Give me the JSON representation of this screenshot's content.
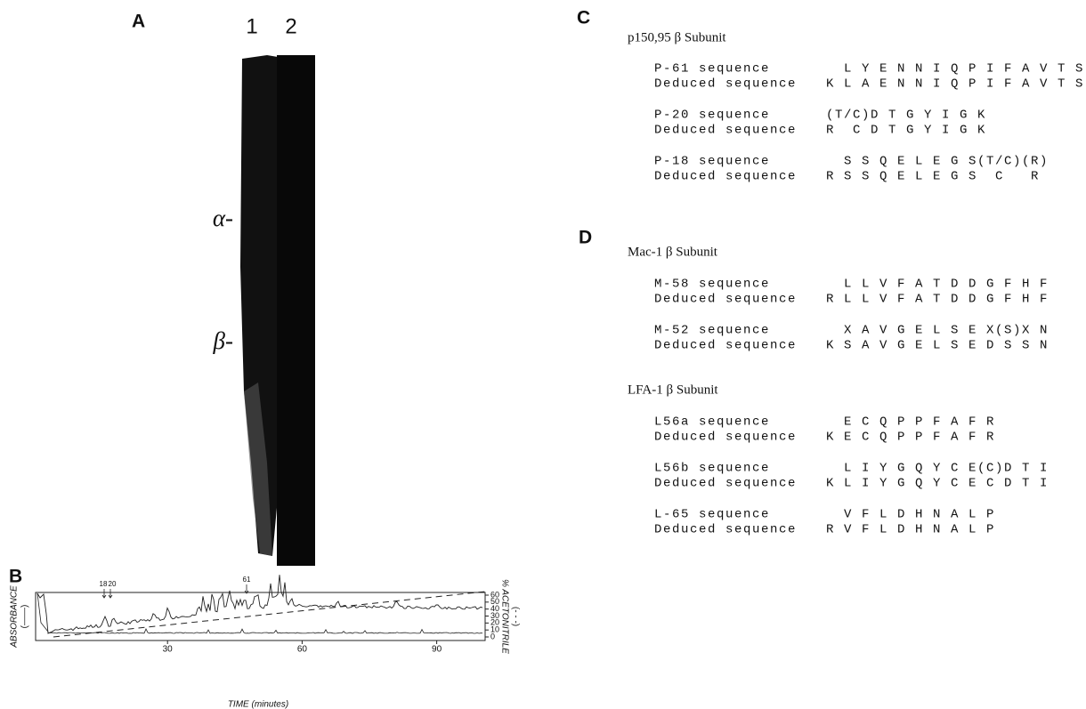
{
  "panel_a": {
    "label": "A",
    "lanes": [
      "1",
      "2"
    ],
    "bands": [
      "α-",
      "β-"
    ]
  },
  "panel_b": {
    "label": "B",
    "y_label": "ABSORBANCE",
    "y_label_sub": "(——)",
    "y2_label": "% ACETONITRILE",
    "y2_label_sub": "(- - -)",
    "x_label": "TIME (minutes)",
    "xlim": [
      0,
      100
    ],
    "xticks": [
      30,
      60,
      90
    ],
    "y2lim": [
      0,
      60
    ],
    "y2ticks": [
      0,
      10,
      20,
      30,
      40,
      50,
      60
    ],
    "peak_labels": [
      "18",
      "20",
      "61"
    ]
  },
  "panel_c": {
    "label": "C",
    "groups": [
      {
        "title": "p150,95 β Subunit",
        "rows": [
          [
            "P-61 sequence",
            "  L Y E N N I Q P I F A V T S"
          ],
          [
            "Deduced sequence",
            "K L A E N N I Q P I F A V T S"
          ],
          [
            "P-20 sequence",
            "(T/C)D T G Y I G K"
          ],
          [
            "Deduced sequence",
            "R  C D T G Y I G K"
          ],
          [
            "P-18 sequence",
            "  S S Q E L E G S(T/C)(R)"
          ],
          [
            "Deduced sequence",
            "R S S Q E L E G S  C   R"
          ]
        ]
      }
    ]
  },
  "panel_d": {
    "label": "D",
    "groups": [
      {
        "title": "Mac-1 β Subunit",
        "rows": [
          [
            "M-58 sequence",
            "  L L V F A T D D G F H F"
          ],
          [
            "Deduced sequence",
            "R L L V F A T D D G F H F"
          ],
          [
            "M-52 sequence",
            "  X A V G E L S E X(S)X N"
          ],
          [
            "Deduced sequence",
            "K S A V G E L S E D S S N"
          ]
        ]
      },
      {
        "title": "LFA-1 β Subunit",
        "rows": [
          [
            "L56a sequence",
            "  E C Q P P F A F R"
          ],
          [
            "Deduced sequence",
            "K E C Q P P F A F R"
          ],
          [
            "L56b sequence",
            "  L I Y G Q Y C E(C)D T I"
          ],
          [
            "Deduced sequence",
            "K L I Y G Q Y C E C D T I"
          ],
          [
            "L-65 sequence",
            "  V F L D H N A L P"
          ],
          [
            "Deduced sequence",
            "R V F L D H N A L P"
          ]
        ]
      }
    ]
  }
}
